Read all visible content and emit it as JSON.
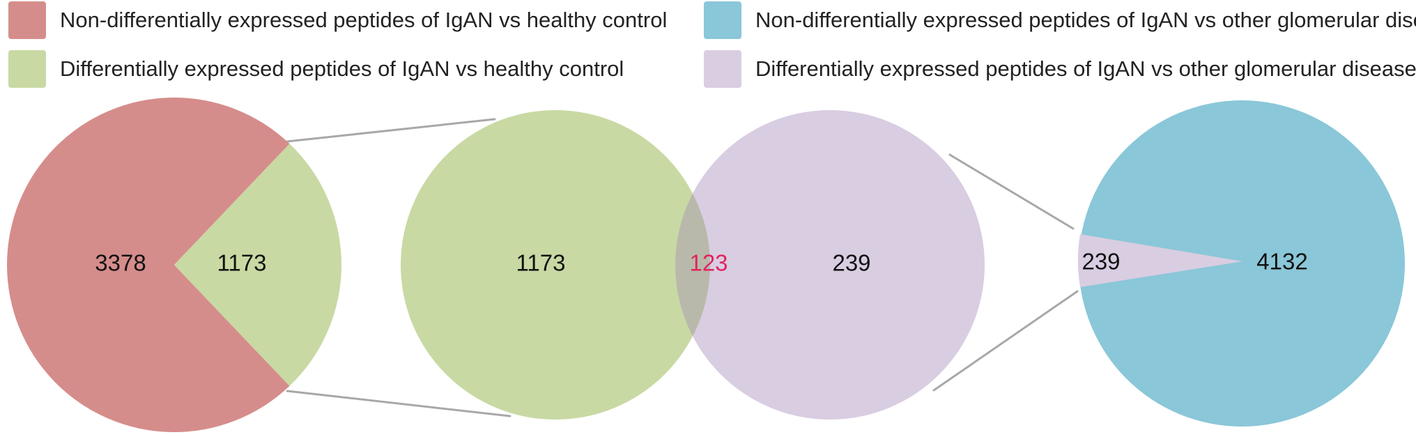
{
  "legend": [
    {
      "label": "Non-differentially expressed peptides of IgAN vs healthy control",
      "color": "#d58d8b"
    },
    {
      "label": "Differentially expressed peptides of IgAN vs healthy control",
      "color": "#c8d9a3"
    },
    {
      "label": "Non-differentially expressed peptides of IgAN vs other glomerular disease",
      "color": "#8ac7d8"
    },
    {
      "label": "Differentially expressed peptides of IgAN vs other glomerular disease",
      "color": "#d9cde2"
    }
  ],
  "chart_data": [
    {
      "type": "pie",
      "slices": [
        {
          "label": "3378",
          "value": 3378,
          "color": "#d58d8b"
        },
        {
          "label": "1173",
          "value": 1173,
          "color": "#c8d9a3"
        }
      ]
    },
    {
      "type": "venn",
      "sets": [
        {
          "label": "1173",
          "value": 1173,
          "color": "#c8d9a3"
        },
        {
          "label": "239",
          "value": 239,
          "color": "#d9cde2"
        }
      ],
      "intersection": {
        "label": "123",
        "value": 123,
        "color": "#b9b9ab",
        "label_color": "#e0245e"
      }
    },
    {
      "type": "pie",
      "slices": [
        {
          "label": "239",
          "value": 239,
          "color": "#d9cde2"
        },
        {
          "label": "4132",
          "value": 4132,
          "color": "#8ac7d8"
        }
      ]
    }
  ]
}
